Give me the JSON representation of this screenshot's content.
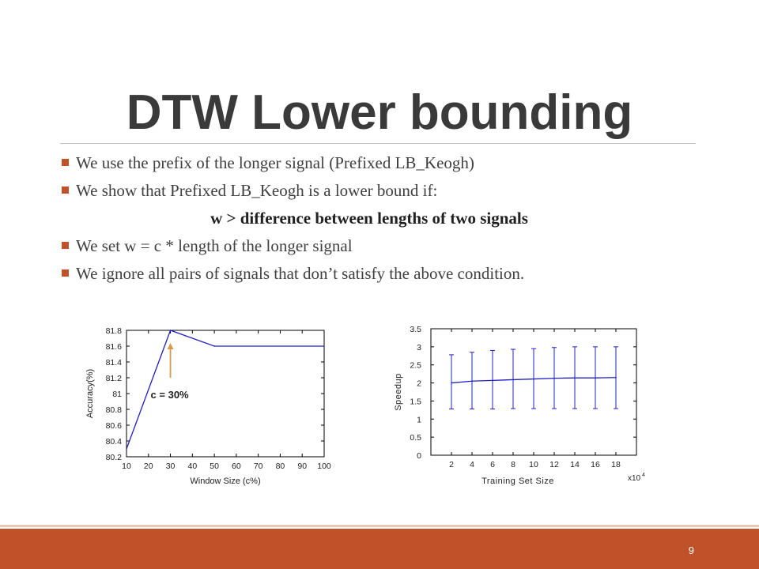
{
  "slide": {
    "title": "DTW Lower bounding",
    "page_number": "9",
    "accent_color": "#c0522a",
    "bullets": [
      "We use the prefix of the longer signal (Prefixed LB_Keogh)",
      "We show that Prefixed LB_Keogh is a lower bound if:",
      "We set w = c * length of the longer signal",
      "We ignore all pairs of signals that don’t satisfy the above condition."
    ],
    "condition": "w > difference between lengths of two signals",
    "bullet_icon": "square-bullet"
  },
  "chart_data": [
    {
      "type": "line",
      "xlabel": "Window Size (c%)",
      "ylabel": "Accuracy(%)",
      "xlim": [
        10,
        100
      ],
      "ylim": [
        80.2,
        81.8
      ],
      "x_ticks": [
        "10",
        "20",
        "30",
        "40",
        "50",
        "60",
        "70",
        "80",
        "90",
        "100"
      ],
      "y_ticks": [
        "80.2",
        "80.4",
        "80.6",
        "80.8",
        "81",
        "81.2",
        "81.4",
        "81.6",
        "81.8"
      ],
      "x": [
        10,
        30,
        50,
        100
      ],
      "y": [
        80.3,
        81.8,
        81.6,
        81.6
      ],
      "line_color": "#2020c0",
      "annotation": {
        "text": "c = 30%",
        "x": 30,
        "y": 81.8,
        "arrow_color": "#d69b50"
      }
    },
    {
      "type": "line",
      "xlabel": "Training Set Size",
      "ylabel": "Speedup",
      "x_multiplier": "x10",
      "x_multiplier_exp": "4",
      "xlim": [
        0,
        20
      ],
      "ylim": [
        0,
        3.5
      ],
      "x_ticks": [
        "2",
        "4",
        "6",
        "8",
        "10",
        "12",
        "14",
        "16",
        "18"
      ],
      "y_ticks": [
        "0",
        "0.5",
        "1",
        "1.5",
        "2",
        "2.5",
        "3",
        "3.5"
      ],
      "x": [
        2,
        4,
        6,
        8,
        10,
        12,
        14,
        16,
        18
      ],
      "y": [
        2.0,
        2.05,
        2.07,
        2.09,
        2.11,
        2.13,
        2.14,
        2.14,
        2.15
      ],
      "error_low": [
        1.28,
        1.28,
        1.28,
        1.29,
        1.29,
        1.29,
        1.29,
        1.29,
        1.29
      ],
      "error_high": [
        2.78,
        2.85,
        2.9,
        2.93,
        2.95,
        2.98,
        3.0,
        3.0,
        3.0
      ],
      "line_color": "#2020c0"
    }
  ]
}
